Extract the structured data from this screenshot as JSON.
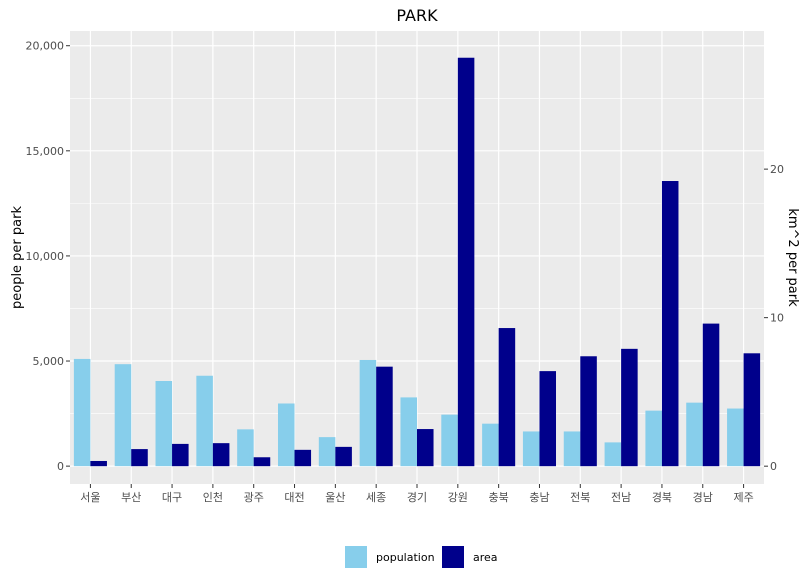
{
  "chart_data": {
    "type": "bar",
    "title": "PARK",
    "categories": [
      "서울",
      "부산",
      "대구",
      "인천",
      "광주",
      "대전",
      "울산",
      "세종",
      "경기",
      "강원",
      "충북",
      "충남",
      "전북",
      "전남",
      "경북",
      "경남",
      "제주"
    ],
    "series": [
      {
        "name": "population",
        "axis": "left",
        "color": "#87CEEB",
        "values": [
          5100,
          4850,
          4050,
          4300,
          1750,
          2980,
          1380,
          5050,
          3270,
          2450,
          2020,
          1650,
          1650,
          1130,
          2640,
          3020,
          2740
        ]
      },
      {
        "name": "area",
        "axis": "right",
        "color": "#00008B",
        "values": [
          0.35,
          1.15,
          1.5,
          1.55,
          0.6,
          1.1,
          1.3,
          6.7,
          2.5,
          27.5,
          9.3,
          6.4,
          7.4,
          7.9,
          19.2,
          9.6,
          7.6
        ]
      }
    ],
    "ylabel": "people per park",
    "ylabel_right": "km^2 per park",
    "ylim": [
      -850,
      20700
    ],
    "ylim_right": [
      -1.2,
      29.3
    ],
    "yticks": [
      0,
      5000,
      10000,
      15000,
      20000
    ],
    "ytick_labels": [
      "0",
      "5,000",
      "10,000",
      "15,000",
      "20,000"
    ],
    "yticks_right": [
      0,
      10,
      20
    ],
    "ytick_labels_right": [
      "0",
      "10",
      "20"
    ],
    "grid": true,
    "legend_position": "bottom",
    "colors": {
      "panel": "#EBEBEB",
      "grid": "#FFFFFF"
    }
  }
}
